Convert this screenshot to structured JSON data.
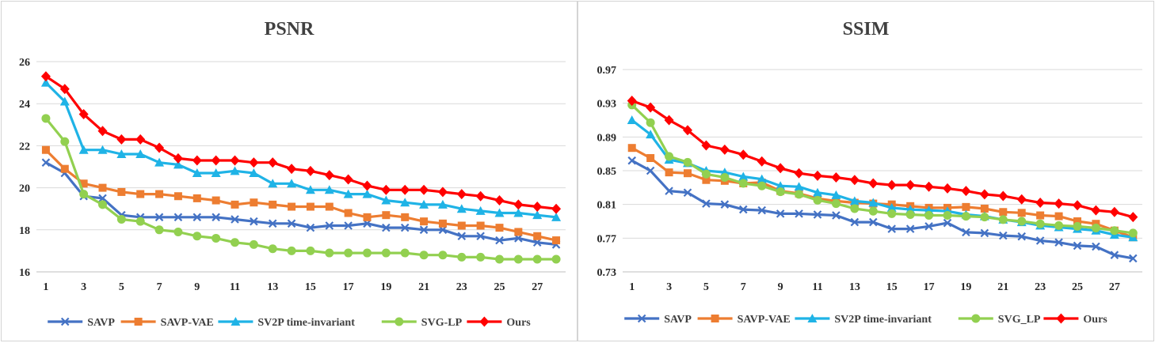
{
  "colors": {
    "SAVP": "#4472C4",
    "SAVP-VAE": "#ED7D31",
    "SV2P time-invariant": "#1FB3E6",
    "SVG-LP": "#92D050",
    "Ours": "#FF0000",
    "grid": "#d9d9d9",
    "axis": "#bfbfbf"
  },
  "chart_data": [
    {
      "type": "line",
      "title": "PSNR",
      "xlabel": "",
      "ylabel": "",
      "x": [
        1,
        2,
        3,
        4,
        5,
        6,
        7,
        8,
        9,
        10,
        11,
        12,
        13,
        14,
        15,
        16,
        17,
        18,
        19,
        20,
        21,
        22,
        23,
        24,
        25,
        26,
        27,
        28
      ],
      "xticks": [
        "1",
        "3",
        "5",
        "7",
        "9",
        "11",
        "13",
        "15",
        "17",
        "19",
        "21",
        "23",
        "25",
        "27"
      ],
      "ylim": [
        16,
        26
      ],
      "yticks": [
        "16",
        "18",
        "20",
        "22",
        "24",
        "26"
      ],
      "grid": true,
      "legend": "bottom",
      "series": [
        {
          "name": "SAVP",
          "marker": "x",
          "values": [
            21.2,
            20.7,
            19.6,
            19.5,
            18.7,
            18.6,
            18.6,
            18.6,
            18.6,
            18.6,
            18.5,
            18.4,
            18.3,
            18.3,
            18.1,
            18.2,
            18.2,
            18.3,
            18.1,
            18.1,
            18.0,
            18.0,
            17.7,
            17.7,
            17.5,
            17.6,
            17.4,
            17.3
          ]
        },
        {
          "name": "SAVP-VAE",
          "marker": "square",
          "values": [
            21.8,
            20.9,
            20.2,
            20.0,
            19.8,
            19.7,
            19.7,
            19.6,
            19.5,
            19.4,
            19.2,
            19.3,
            19.2,
            19.1,
            19.1,
            19.1,
            18.8,
            18.6,
            18.7,
            18.6,
            18.4,
            18.3,
            18.2,
            18.2,
            18.1,
            17.9,
            17.7,
            17.5
          ]
        },
        {
          "name": "SV2P time-invariant",
          "marker": "triangle",
          "values": [
            25.0,
            24.1,
            21.8,
            21.8,
            21.6,
            21.6,
            21.2,
            21.1,
            20.7,
            20.7,
            20.8,
            20.7,
            20.2,
            20.2,
            19.9,
            19.9,
            19.7,
            19.7,
            19.4,
            19.3,
            19.2,
            19.2,
            19.0,
            18.9,
            18.8,
            18.8,
            18.7,
            18.6
          ]
        },
        {
          "name": "SVG-LP",
          "marker": "circle",
          "values": [
            23.3,
            22.2,
            19.7,
            19.2,
            18.5,
            18.4,
            18.0,
            17.9,
            17.7,
            17.6,
            17.4,
            17.3,
            17.1,
            17.0,
            17.0,
            16.9,
            16.9,
            16.9,
            16.9,
            16.9,
            16.8,
            16.8,
            16.7,
            16.7,
            16.6,
            16.6,
            16.6,
            16.6
          ]
        },
        {
          "name": "Ours",
          "marker": "diamond",
          "values": [
            25.3,
            24.7,
            23.5,
            22.7,
            22.3,
            22.3,
            21.9,
            21.4,
            21.3,
            21.3,
            21.3,
            21.2,
            21.2,
            20.9,
            20.8,
            20.6,
            20.4,
            20.1,
            19.9,
            19.9,
            19.9,
            19.8,
            19.7,
            19.6,
            19.4,
            19.2,
            19.1,
            19.0
          ]
        }
      ]
    },
    {
      "type": "line",
      "title": "SSIM",
      "xlabel": "",
      "ylabel": "",
      "x": [
        1,
        2,
        3,
        4,
        5,
        6,
        7,
        8,
        9,
        10,
        11,
        12,
        13,
        14,
        15,
        16,
        17,
        18,
        19,
        20,
        21,
        22,
        23,
        24,
        25,
        26,
        27,
        28
      ],
      "xticks": [
        "1",
        "3",
        "5",
        "7",
        "9",
        "11",
        "13",
        "15",
        "17",
        "19",
        "21",
        "23",
        "25",
        "27"
      ],
      "ylim": [
        0.73,
        0.97
      ],
      "yticks": [
        "0.73",
        "0.77",
        "0.81",
        "0.85",
        "0.89",
        "0.93",
        "0.97"
      ],
      "grid": true,
      "legend": "bottom",
      "series": [
        {
          "name": "SAVP",
          "marker": "x",
          "values": [
            0.862,
            0.85,
            0.826,
            0.824,
            0.811,
            0.81,
            0.804,
            0.803,
            0.799,
            0.799,
            0.798,
            0.797,
            0.789,
            0.789,
            0.781,
            0.781,
            0.784,
            0.788,
            0.777,
            0.776,
            0.773,
            0.772,
            0.767,
            0.765,
            0.761,
            0.76,
            0.75,
            0.746
          ]
        },
        {
          "name": "SAVP-VAE",
          "marker": "square",
          "values": [
            0.877,
            0.865,
            0.848,
            0.847,
            0.839,
            0.838,
            0.835,
            0.836,
            0.826,
            0.823,
            0.817,
            0.814,
            0.812,
            0.811,
            0.81,
            0.808,
            0.806,
            0.806,
            0.807,
            0.805,
            0.801,
            0.8,
            0.797,
            0.796,
            0.79,
            0.787,
            0.779,
            0.771
          ]
        },
        {
          "name": "SV2P time-invariant",
          "marker": "triangle",
          "values": [
            0.91,
            0.893,
            0.863,
            0.859,
            0.85,
            0.848,
            0.843,
            0.84,
            0.832,
            0.831,
            0.824,
            0.821,
            0.814,
            0.812,
            0.806,
            0.804,
            0.803,
            0.802,
            0.798,
            0.796,
            0.792,
            0.789,
            0.785,
            0.783,
            0.781,
            0.779,
            0.774,
            0.771
          ]
        },
        {
          "name": "SVG-LP",
          "marker": "circle",
          "values": [
            0.928,
            0.907,
            0.867,
            0.86,
            0.846,
            0.842,
            0.835,
            0.832,
            0.825,
            0.822,
            0.815,
            0.811,
            0.805,
            0.802,
            0.799,
            0.798,
            0.797,
            0.797,
            0.796,
            0.795,
            0.792,
            0.79,
            0.787,
            0.785,
            0.784,
            0.782,
            0.779,
            0.776
          ]
        },
        {
          "name": "Ours",
          "marker": "diamond",
          "values": [
            0.933,
            0.925,
            0.91,
            0.898,
            0.88,
            0.875,
            0.869,
            0.861,
            0.853,
            0.847,
            0.844,
            0.842,
            0.839,
            0.835,
            0.833,
            0.833,
            0.831,
            0.829,
            0.826,
            0.822,
            0.82,
            0.816,
            0.812,
            0.811,
            0.809,
            0.803,
            0.801,
            0.795
          ]
        }
      ]
    }
  ],
  "legends": [
    [
      "SAVP",
      "SAVP-VAE",
      "SV2P time-invariant",
      "SVG-LP",
      "Ours"
    ],
    [
      "SAVP",
      "SAVP-VAE",
      "SV2P time-invariant",
      "SVG_LP",
      "Ours"
    ]
  ]
}
